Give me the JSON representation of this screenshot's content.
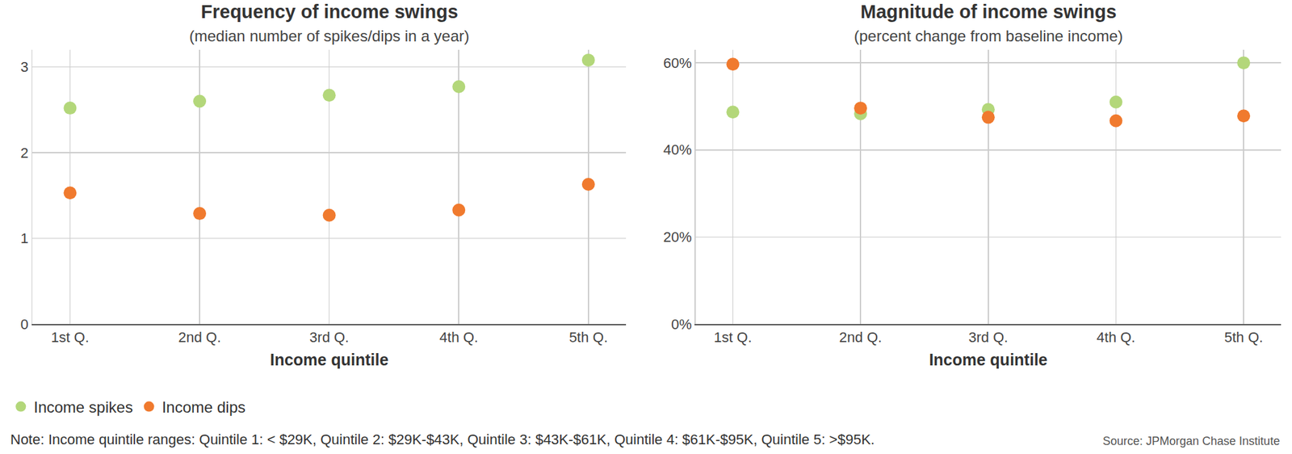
{
  "chart_data": [
    {
      "type": "scatter",
      "title": "Frequency of income swings",
      "subtitle": "(median number of spikes/dips in a year)",
      "x_label": "Income quintile",
      "categories": [
        "1st Q.",
        "2nd Q.",
        "3rd Q.",
        "4th Q.",
        "5th Q."
      ],
      "series": [
        {
          "name": "Income spikes",
          "color": "#b3d77a",
          "values": [
            2.52,
            2.6,
            2.67,
            2.77,
            3.08
          ]
        },
        {
          "name": "Income dips",
          "color": "#f07a2e",
          "values": [
            1.53,
            1.29,
            1.27,
            1.33,
            1.63
          ]
        }
      ],
      "ylim": [
        0,
        3.2
      ],
      "yticks": [
        0,
        1,
        2,
        3
      ],
      "grid": true,
      "legend": "bottom",
      "marker": "circle"
    },
    {
      "type": "scatter",
      "title": "Magnitude of income swings",
      "subtitle": "(percent change from baseline income)",
      "x_label": "Income quintile",
      "categories": [
        "1st Q.",
        "2nd Q.",
        "3rd Q.",
        "4th Q.",
        "5th Q."
      ],
      "series": [
        {
          "name": "Income spikes",
          "color": "#b3d77a",
          "values": [
            48.7,
            48.3,
            49.3,
            51.0,
            60.0
          ]
        },
        {
          "name": "Income dips",
          "color": "#f07a2e",
          "values": [
            59.7,
            49.6,
            47.5,
            46.7,
            47.8
          ]
        }
      ],
      "ylim": [
        0,
        63
      ],
      "yticks": [
        {
          "value": 0,
          "label": "0%"
        },
        {
          "value": 20,
          "label": "20%"
        },
        {
          "value": 40,
          "label": "40%"
        },
        {
          "value": 60,
          "label": "60%"
        }
      ],
      "grid": true,
      "marker": "circle"
    }
  ],
  "note": "Note: Income quintile ranges: Quintile 1: < $29K, Quintile 2: $29K-$43K, Quintile 3: $43K-$61K, Quintile 4: $61K-$95K, Quintile 5: >$95K.",
  "source": "Source: JPMorgan Chase Institute"
}
